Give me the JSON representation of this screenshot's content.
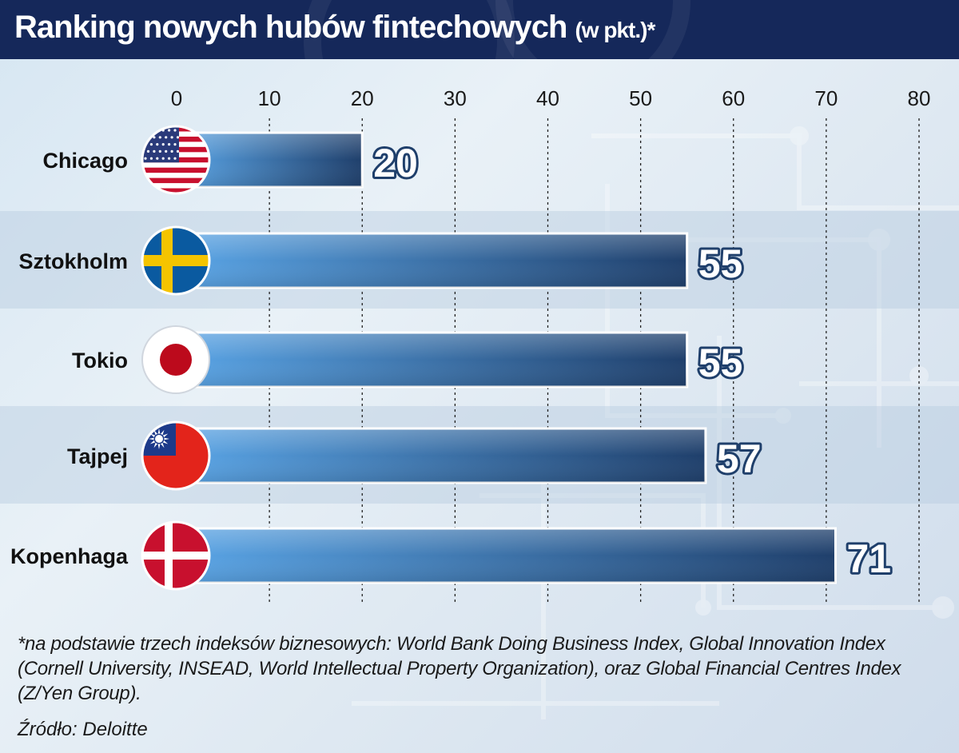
{
  "header": {
    "title": "Ranking nowych hubów fintechowych",
    "subtitle": "(w pkt.)*"
  },
  "chart_data": {
    "type": "bar",
    "orientation": "horizontal",
    "categories": [
      "Chicago",
      "Sztokholm",
      "Tokio",
      "Tajpej",
      "Kopenhaga"
    ],
    "values": [
      20,
      55,
      55,
      57,
      71
    ],
    "flags": [
      "us-flag-icon",
      "sweden-flag-icon",
      "japan-flag-icon",
      "taiwan-flag-icon",
      "denmark-flag-icon"
    ],
    "xlim": [
      0,
      80
    ],
    "xticks": [
      0,
      10,
      20,
      30,
      40,
      50,
      60,
      70,
      80
    ],
    "grid": "dotted vertical",
    "bar_color_start": "#5aa5e6",
    "bar_color_end": "#1f3f6b"
  },
  "footnote": "*na podstawie trzech indeksów biznesowych: World Bank Doing Business Index, Global Innovation Index (Cornell University, INSEAD, World Intellectual Property Organization), oraz Global Financial Centres Index (Z/Yen Group).",
  "source": "Źródło: Deloitte"
}
